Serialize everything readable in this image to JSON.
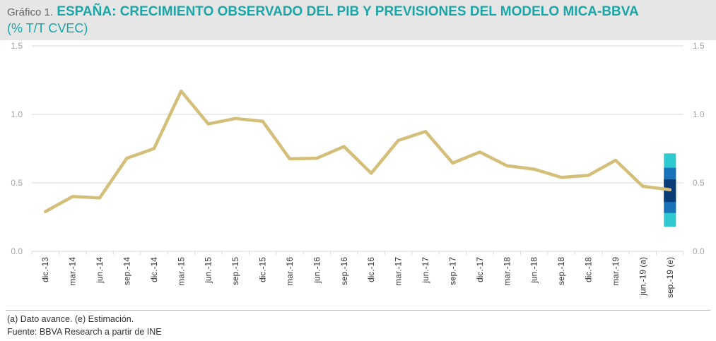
{
  "header": {
    "prefix": "Gráfico 1.",
    "title": "ESPAÑA: CRECIMIENTO OBSERVADO DEL PIB Y PREVISIONES DEL MODELO MICA-BBVA",
    "subtitle": "(% T/T CVEC)"
  },
  "footer": {
    "note": "(a) Dato avance.  (e) Estimación.",
    "source": "Fuente: BBVA Research a partir de INE"
  },
  "colors": {
    "line": "#d4bf7a",
    "grid": "#d9d9d9",
    "axis_text": "#a6a6a6",
    "band_outer": "#2ecad0",
    "band_mid": "#1a73b8",
    "band_inner": "#0a3c78",
    "title": "#1ba6a8"
  },
  "chart_data": {
    "type": "line",
    "categories": [
      "dic.-13",
      "mar.-14",
      "jun.-14",
      "sep.-14",
      "dic.-14",
      "mar.-15",
      "jun.-15",
      "sep.-15",
      "dic.-15",
      "mar.-16",
      "jun.-16",
      "sep.-16",
      "dic.-16",
      "mar.-17",
      "jun.-17",
      "sep.-17",
      "dic.-17",
      "mar.-18",
      "jun.-18",
      "sep.-18",
      "dic.-18",
      "mar.-19",
      "jun.-19 (a)",
      "sep.-19 (e)"
    ],
    "series": [
      {
        "values": [
          0.29,
          0.4,
          0.39,
          0.68,
          0.75,
          1.17,
          0.93,
          0.97,
          0.95,
          0.675,
          0.68,
          0.765,
          0.57,
          0.81,
          0.875,
          0.645,
          0.725,
          0.625,
          0.6,
          0.54,
          0.555,
          0.665,
          0.475,
          0.45
        ]
      }
    ],
    "forecast_band": {
      "category": "sep.-19 (e)",
      "bands": [
        {
          "level": "outer",
          "low": 0.18,
          "high": 0.715
        },
        {
          "level": "mid",
          "low": 0.28,
          "high": 0.61
        },
        {
          "level": "inner",
          "low": 0.36,
          "high": 0.525
        }
      ]
    },
    "yticks": [
      "0.0",
      "0.5",
      "1.0",
      "1.5"
    ],
    "ylim": [
      0,
      1.5
    ],
    "grid": true,
    "y_axis_both_sides": true
  }
}
